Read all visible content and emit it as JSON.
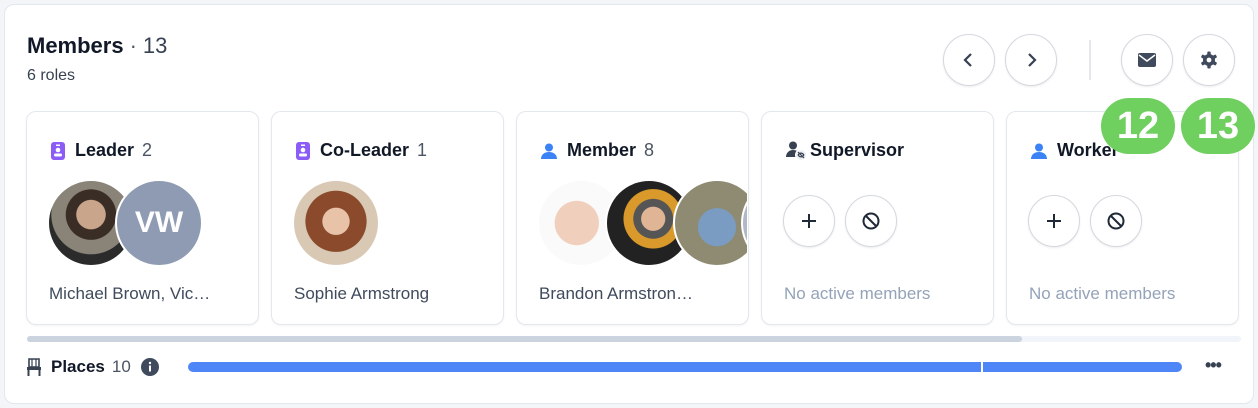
{
  "header": {
    "title": "Members",
    "separator": "·",
    "count": "13",
    "subtitle": "6 roles"
  },
  "controls": {
    "prev": "chevron-left-icon",
    "next": "chevron-right-icon",
    "email": "envelope-icon",
    "settings": "gear-icon"
  },
  "badges": [
    "12",
    "13"
  ],
  "roles": [
    {
      "name": "Leader",
      "count": "2",
      "icon": "id-badge-icon",
      "icon_color": "#8b5cf6",
      "members": "Michael Brown, Vic…",
      "avatars": [
        {
          "type": "photo"
        },
        {
          "type": "initials",
          "text": "VW"
        }
      ]
    },
    {
      "name": "Co-Leader",
      "count": "1",
      "icon": "id-badge-icon",
      "icon_color": "#8b5cf6",
      "members": "Sophie Armstrong",
      "avatars": [
        {
          "type": "photo"
        }
      ]
    },
    {
      "name": "Member",
      "count": "8",
      "icon": "user-icon",
      "icon_color": "#3b82f6",
      "members": "Brandon Armstron…",
      "avatars": [
        {
          "type": "photo"
        },
        {
          "type": "photo"
        },
        {
          "type": "photo"
        },
        {
          "type": "photo"
        }
      ]
    },
    {
      "name": "Supervisor",
      "count": "",
      "icon": "user-hidden-icon",
      "icon_color": "#374151",
      "members": "No active members"
    },
    {
      "name": "Worker",
      "count": "",
      "icon": "user-icon",
      "icon_color": "#3b82f6",
      "members": "No active members"
    }
  ],
  "places": {
    "label": "Places",
    "count": "10",
    "segments": [
      8,
      2
    ],
    "bar_color": "#4f86f7"
  },
  "scroll_position": 0.82
}
